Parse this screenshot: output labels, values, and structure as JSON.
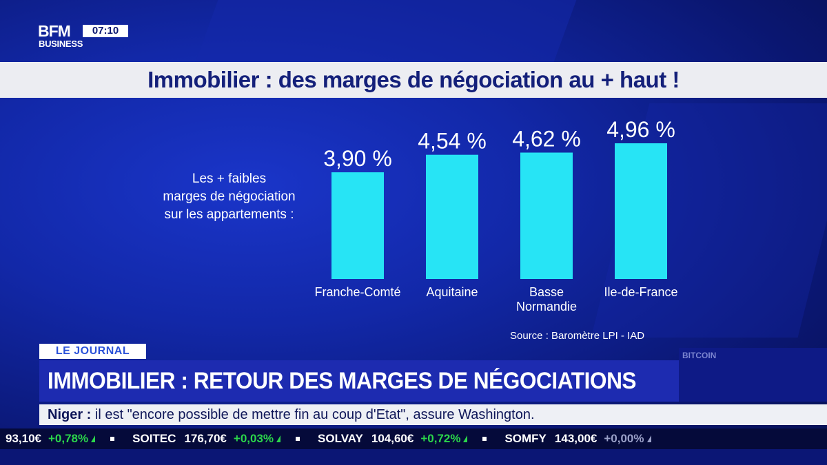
{
  "broadcast": {
    "logo_top": "BFM",
    "logo_bottom": "BUSINESS",
    "time": "07:10"
  },
  "slide": {
    "title": "Immobilier : des marges de négociation au + haut !",
    "subtitle_lines": [
      "Les + faibles",
      "marges de négociation",
      "sur les appartements :"
    ],
    "source": "Source : Baromètre LPI - IAD"
  },
  "chart_data": {
    "type": "bar",
    "title": "",
    "categories": [
      [
        "Franche-Comté"
      ],
      [
        "Aquitaine"
      ],
      [
        "Basse",
        "Normandie"
      ],
      [
        "Ile-de-France"
      ]
    ],
    "values": [
      3.9,
      4.54,
      4.62,
      4.96
    ],
    "value_labels": [
      "3,90 %",
      "4,54 %",
      "4,62 %",
      "4,96 %"
    ],
    "unit": "%",
    "ylim": [
      0,
      4.96
    ],
    "grid": false,
    "legend": "none",
    "bar_color": "#27e4f5"
  },
  "lower_third": {
    "tag": "LE JOURNAL",
    "headline": "IMMOBILIER : RETOUR DES MARGES DE NÉGOCIATIONS",
    "market_label": "BITCOIN"
  },
  "news": {
    "bold": "Niger :",
    "text": " il est \"encore possible de mettre fin au coup d'Etat\", assure Washington."
  },
  "ticker": [
    {
      "name": "",
      "price": "93,10€",
      "change": "+0,78%",
      "dir": "up"
    },
    {
      "name": "SOITEC",
      "price": "176,70€",
      "change": "+0,03%",
      "dir": "up"
    },
    {
      "name": "SOLVAY",
      "price": "104,60€",
      "change": "+0,72%",
      "dir": "up"
    },
    {
      "name": "SOMFY",
      "price": "143,00€",
      "change": "+0,00%",
      "dir": "neutral"
    }
  ],
  "colors": {
    "background": "#1228a8",
    "title_band": "#ecedf2",
    "title_text": "#14207a",
    "headline_band": "#1d2bb0",
    "ticker_up": "#2bd64a"
  }
}
